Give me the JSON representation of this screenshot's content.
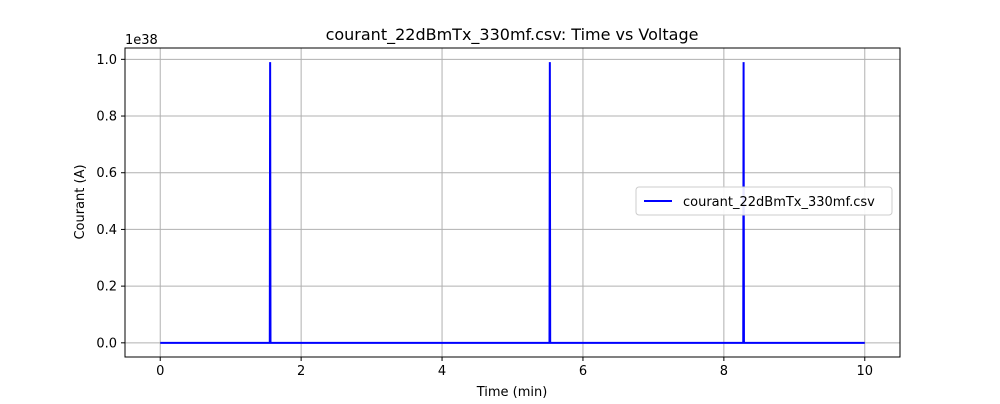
{
  "chart_data": {
    "type": "line",
    "title": "courant_22dBmTx_330mf.csv: Time vs Voltage",
    "xlabel": "Time (min)",
    "ylabel": "Courant (A)",
    "y_offset_text": "1e38",
    "xlim": [
      -0.5,
      10.5
    ],
    "ylim": [
      -0.05,
      1.04
    ],
    "x_ticks": [
      0,
      2,
      4,
      6,
      8,
      10
    ],
    "x_tick_labels": [
      "0",
      "2",
      "4",
      "6",
      "8",
      "10"
    ],
    "y_ticks": [
      0.0,
      0.2,
      0.4,
      0.6,
      0.8,
      1.0
    ],
    "y_tick_labels": [
      "0.0",
      "0.2",
      "0.4",
      "0.6",
      "0.8",
      "1.0"
    ],
    "grid": true,
    "legend_position": "center-right",
    "series": [
      {
        "name": "courant_22dBmTx_330mf.csv",
        "color": "#0000ff",
        "x": [
          0,
          1.555,
          1.56,
          1.565,
          5.525,
          5.53,
          5.535,
          8.275,
          8.28,
          8.285,
          10
        ],
        "y": [
          0,
          0,
          0.99,
          0,
          0,
          0.99,
          0,
          0,
          0.99,
          0,
          0
        ]
      }
    ]
  }
}
